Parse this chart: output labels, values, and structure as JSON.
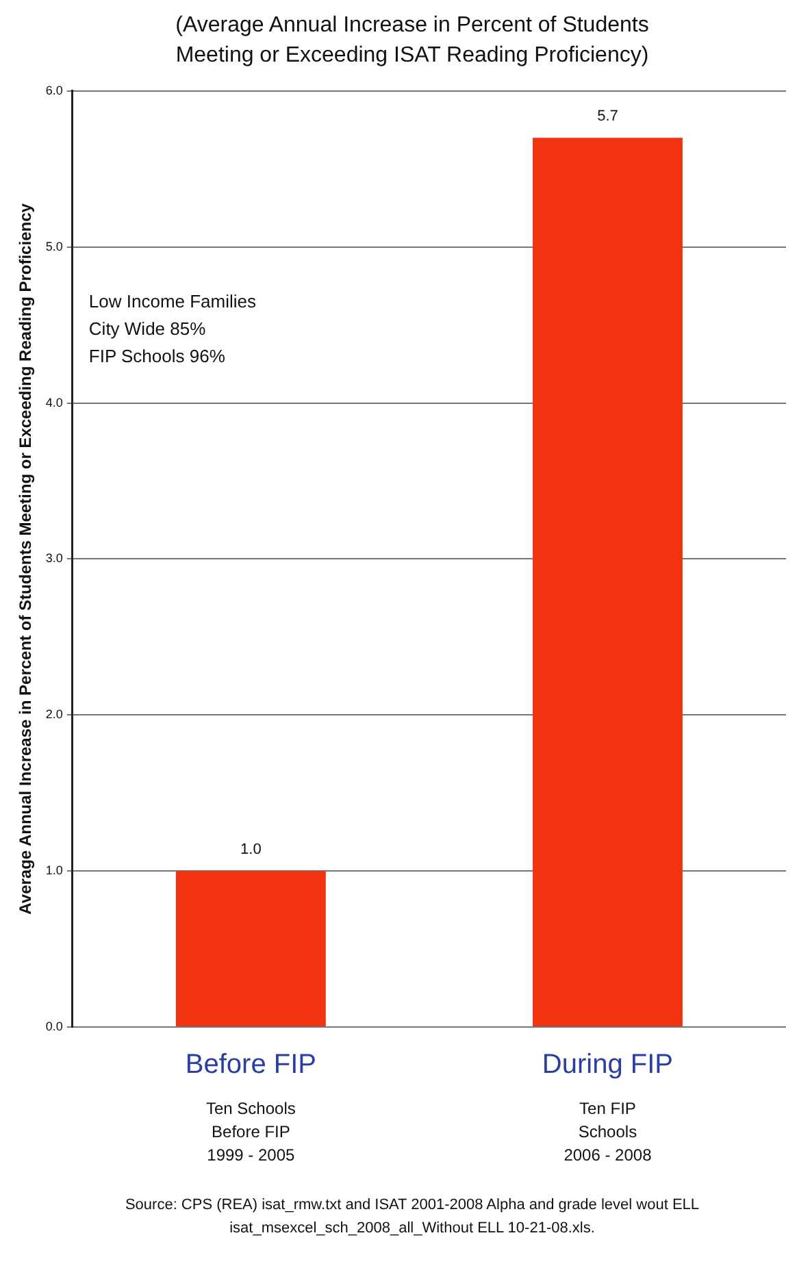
{
  "chart_data": {
    "type": "bar",
    "title": "(Average Annual Increase in Percent of Students Meeting or Exceeding ISAT Reading Proficiency)",
    "ylabel": "Average Annual Increase in Percent of Students Meeting or Exceeding Reading Proficiency",
    "categories": [
      "Before FIP",
      "During FIP"
    ],
    "values": [
      1.0,
      5.7
    ],
    "value_labels": [
      "1.0",
      "5.7"
    ],
    "color": "#f2330f",
    "ylim": [
      0,
      6
    ],
    "yticks": [
      {
        "value": 0,
        "label": "0.0"
      },
      {
        "value": 1,
        "label": "1.0"
      },
      {
        "value": 2,
        "label": "2.0"
      },
      {
        "value": 3,
        "label": "3.0"
      },
      {
        "value": 4,
        "label": "4.0"
      },
      {
        "value": 5,
        "label": "5.0"
      },
      {
        "value": 6,
        "label": "6.0"
      }
    ],
    "grid": "y",
    "annotations": [
      "Low Income Families\nCity Wide 85%\nFIP Schools 96%",
      "Ten Schools\nBefore FIP\n1999 - 2005",
      "Ten FIP\nSchools\n2006 - 2008",
      "Source:  CPS (REA) isat_rmw.txt and ISAT 2001-2008 Alpha and grade level wout ELL isat_msexcel_sch_2008_all_Without ELL 10-21-08.xls."
    ]
  }
}
